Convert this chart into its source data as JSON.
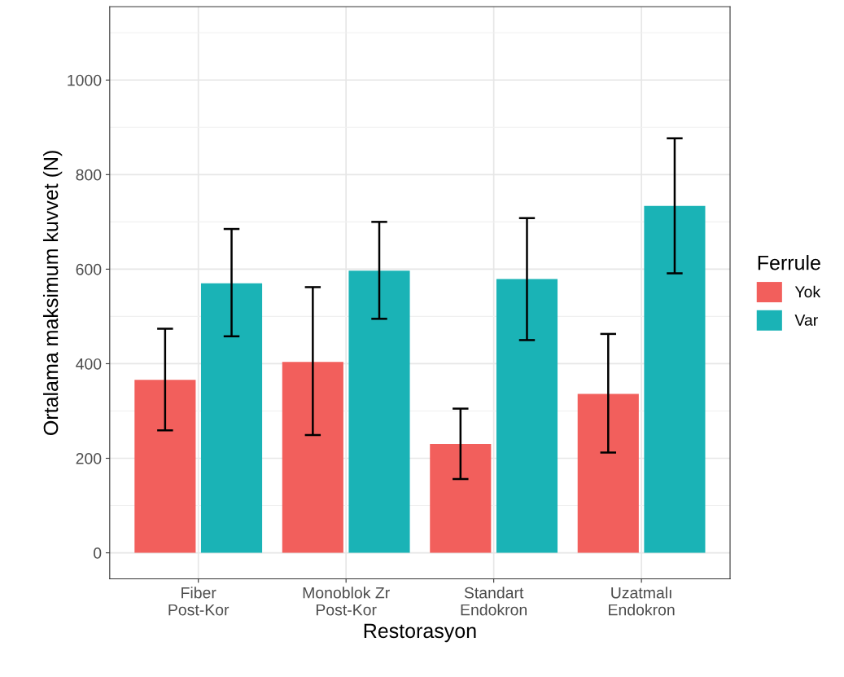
{
  "chart_data": {
    "type": "bar",
    "xlabel": "Restorasyon",
    "ylabel": "Ortalama maksimum kuvvet (N)",
    "legend_title": "Ferrule",
    "categories": [
      "Fiber\nPost-Kor",
      "Monoblok Zr\nPost-Kor",
      "Standart\nEndokron",
      "Uzatmalı\nEndokron"
    ],
    "series": [
      {
        "name": "Yok",
        "color": "#f25f5c",
        "values": [
          366,
          404,
          230,
          336
        ],
        "errors": [
          [
            259,
            474
          ],
          [
            249,
            562
          ],
          [
            156,
            305
          ],
          [
            212,
            463
          ]
        ]
      },
      {
        "name": "Var",
        "color": "#1ab3b6",
        "values": [
          570,
          597,
          579,
          734
        ],
        "errors": [
          [
            458,
            685
          ],
          [
            495,
            700
          ],
          [
            450,
            708
          ],
          [
            591,
            877
          ]
        ]
      }
    ],
    "ylim": [
      -55,
      1155
    ],
    "yticks": [
      0,
      200,
      400,
      600,
      800,
      1000
    ],
    "grid": true,
    "legend": "right"
  }
}
